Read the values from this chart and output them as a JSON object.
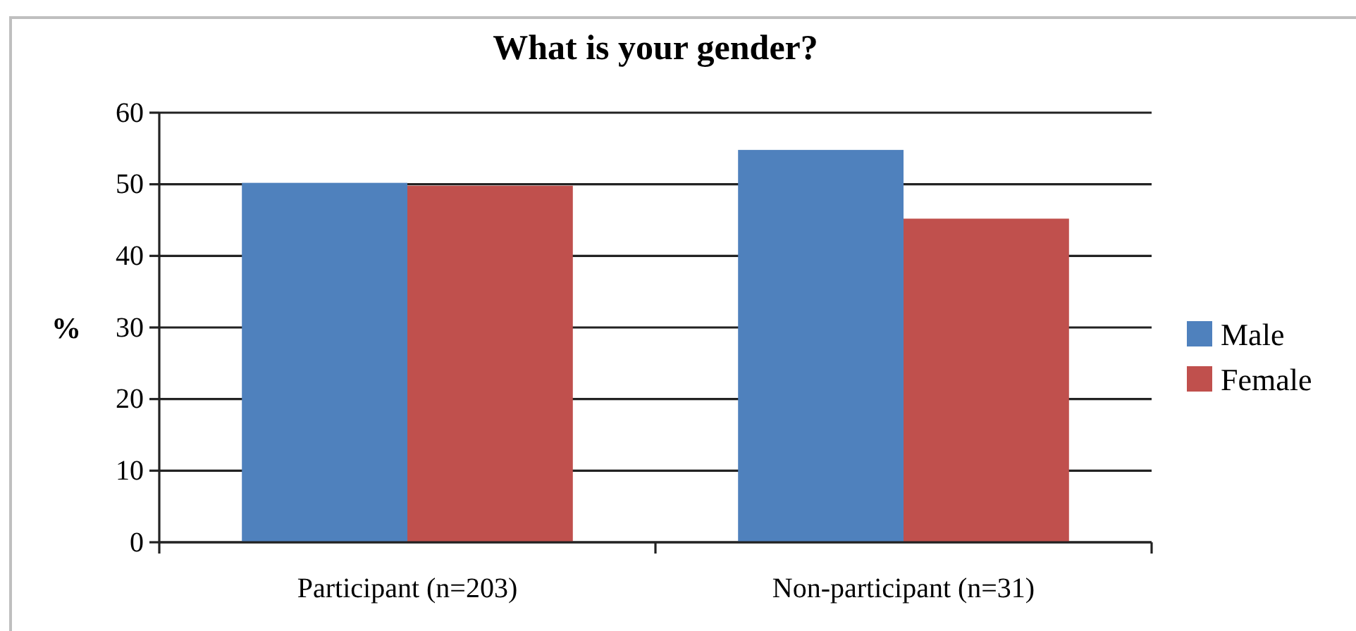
{
  "chart_data": {
    "type": "bar",
    "title": "What is your gender?",
    "ylabel": "%",
    "categories": [
      "Participant (n=203)",
      "Non-participant (n=31)"
    ],
    "series": [
      {
        "name": "Male",
        "color": "#4f81bd",
        "values": [
          50.2,
          54.8
        ]
      },
      {
        "name": "Female",
        "color": "#c0504d",
        "values": [
          49.8,
          45.2
        ]
      }
    ],
    "ylim": [
      0,
      60
    ],
    "yticks": [
      0,
      10,
      20,
      30,
      40,
      50,
      60
    ],
    "grid": "y",
    "legend": "right"
  }
}
